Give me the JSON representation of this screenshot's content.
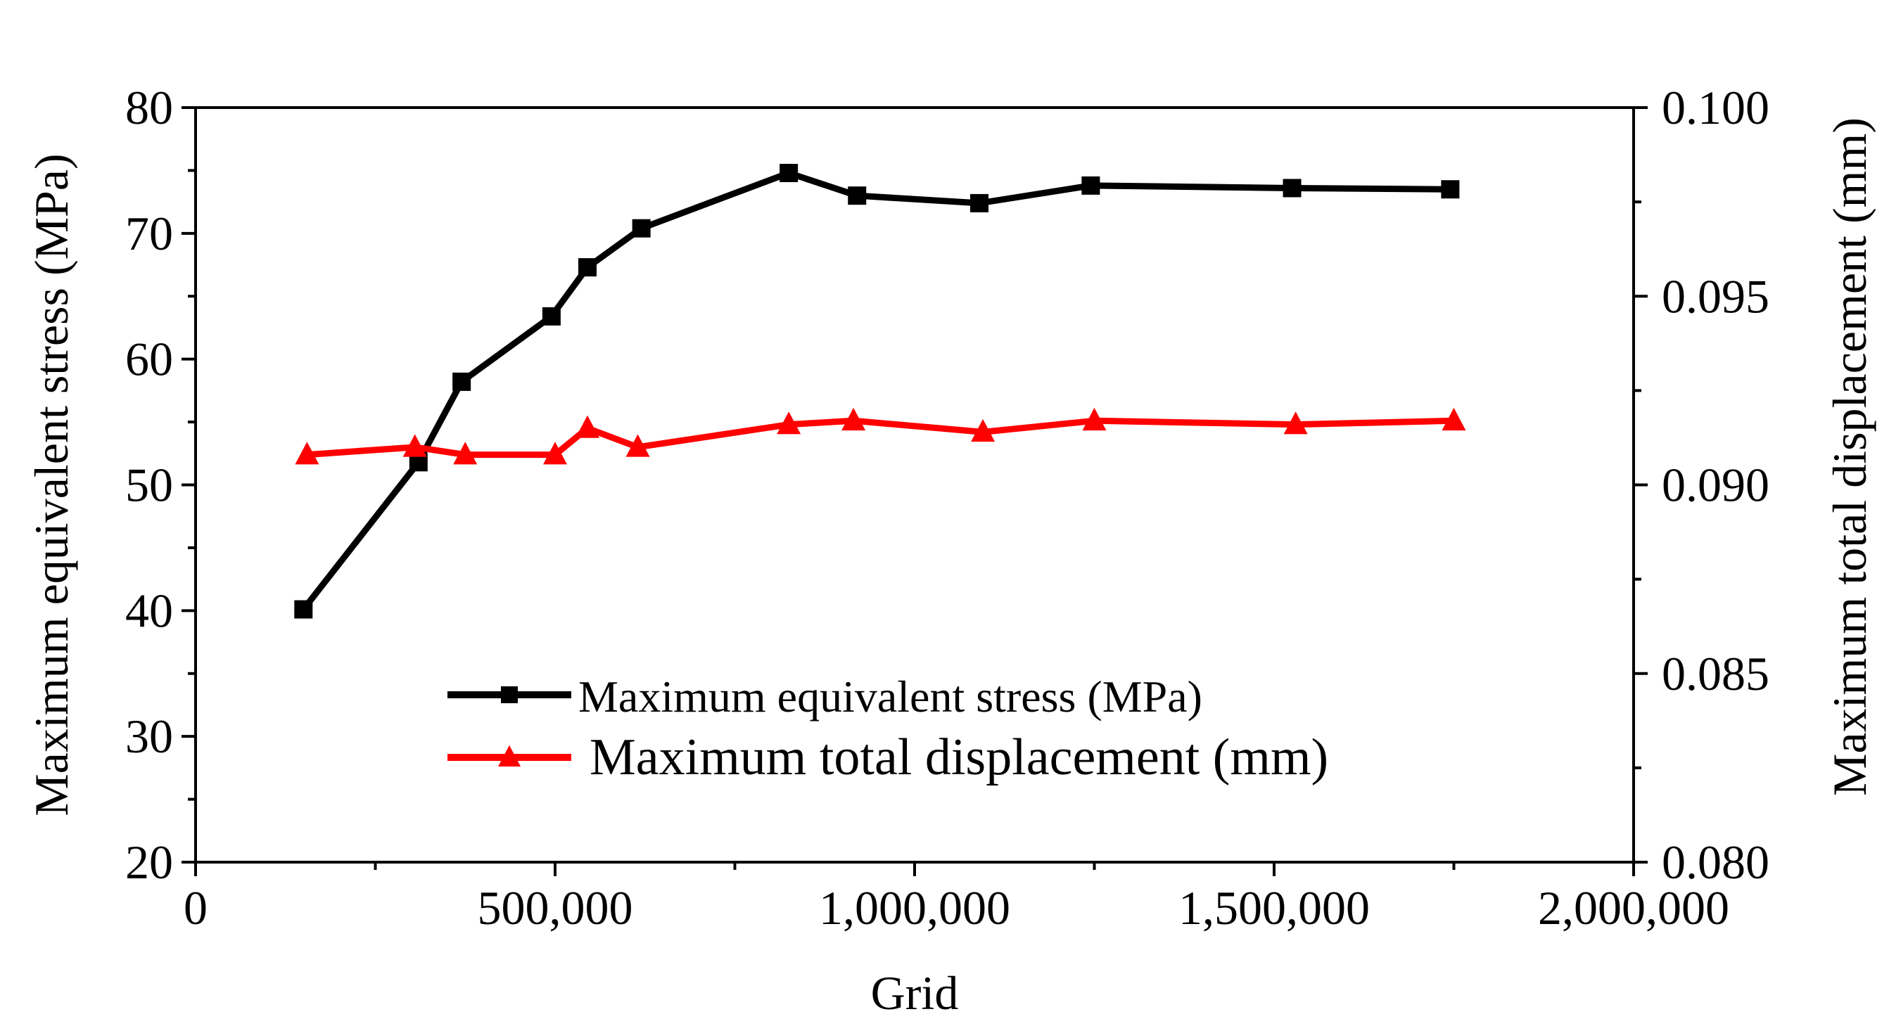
{
  "chart_data": {
    "type": "line",
    "title": "",
    "xlabel": "Grid",
    "ylabel_left": "Maximum equivalent stress (MPa)",
    "ylabel_right": "Maximum total displacement (mm)",
    "xlim": [
      0,
      2000000
    ],
    "ylim_left": [
      20,
      80
    ],
    "ylim_right": [
      0.08,
      0.1
    ],
    "x_ticks": [
      0,
      500000,
      1000000,
      1500000,
      2000000
    ],
    "x_tick_labels": [
      "0",
      "500,000",
      "1,000,000",
      "1,500,000",
      "2,000,000"
    ],
    "x_minor_ticks": [
      250000,
      750000,
      1250000,
      1750000
    ],
    "y_left_ticks": [
      20,
      30,
      40,
      50,
      60,
      70,
      80
    ],
    "y_left_tick_labels": [
      "20",
      "30",
      "40",
      "50",
      "60",
      "70",
      "80"
    ],
    "y_right_ticks": [
      0.08,
      0.085,
      0.09,
      0.095,
      0.1
    ],
    "y_right_tick_labels": [
      "0.080",
      "0.085",
      "0.090",
      "0.095",
      "0.100"
    ],
    "y_right_minor_ticks": [
      0.0825,
      0.0875,
      0.0925,
      0.0975
    ],
    "grid": false,
    "legend_position": "lower-center",
    "series": [
      {
        "name": "Maximum equivalent stress (MPa)",
        "axis": "left",
        "color": "#000000",
        "marker": "square",
        "x": [
          150000,
          310000,
          370000,
          495000,
          545000,
          620000,
          825000,
          920000,
          1090000,
          1245000,
          1525000,
          1745000
        ],
        "y": [
          40.1,
          51.8,
          58.2,
          63.4,
          67.3,
          70.4,
          74.8,
          73.0,
          72.4,
          73.8,
          73.6,
          73.5
        ]
      },
      {
        "name": "Maximum total displacement (mm)",
        "axis": "right",
        "color": "#ff0000",
        "marker": "triangle",
        "x": [
          155000,
          305000,
          375000,
          500000,
          545000,
          615000,
          825000,
          915000,
          1095000,
          1250000,
          1530000,
          1750000
        ],
        "y": [
          0.0908,
          0.091,
          0.0908,
          0.0908,
          0.0915,
          0.091,
          0.0916,
          0.0917,
          0.0914,
          0.0917,
          0.0916,
          0.0917
        ]
      }
    ]
  }
}
